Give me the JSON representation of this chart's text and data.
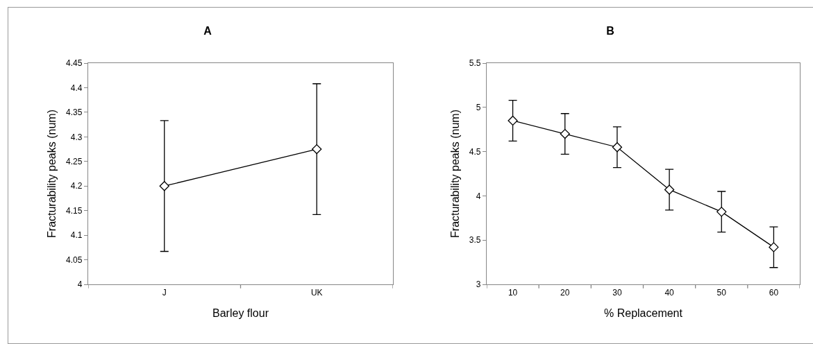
{
  "chart_data": [
    {
      "type": "line",
      "title": "A",
      "xlabel": "Barley flour",
      "ylabel": "Fracturability peaks (num)",
      "categories": [
        "J",
        "UK"
      ],
      "values": [
        4.2,
        4.275
      ],
      "errors": [
        0.133,
        0.133
      ],
      "color": "#000000",
      "ylim": [
        4,
        4.45
      ],
      "yticks": [
        4,
        4.05,
        4.1,
        4.15,
        4.2,
        4.25,
        4.3,
        4.35,
        4.4,
        4.45
      ],
      "grid": false,
      "marker": "diamond",
      "line_style": "solid"
    },
    {
      "type": "line",
      "title": "B",
      "xlabel": "% Replacement",
      "ylabel": "Fracturability peaks (num)",
      "categories": [
        "10",
        "20",
        "30",
        "40",
        "50",
        "60"
      ],
      "values": [
        4.85,
        4.7,
        4.55,
        4.07,
        3.82,
        3.42
      ],
      "errors": [
        0.23,
        0.23,
        0.23,
        0.23,
        0.23,
        0.23
      ],
      "color": "#000000",
      "ylim": [
        3,
        5.5
      ],
      "yticks": [
        3,
        3.5,
        4,
        4.5,
        5,
        5.5
      ],
      "grid": false,
      "marker": "diamond",
      "line_style": "solid"
    }
  ]
}
